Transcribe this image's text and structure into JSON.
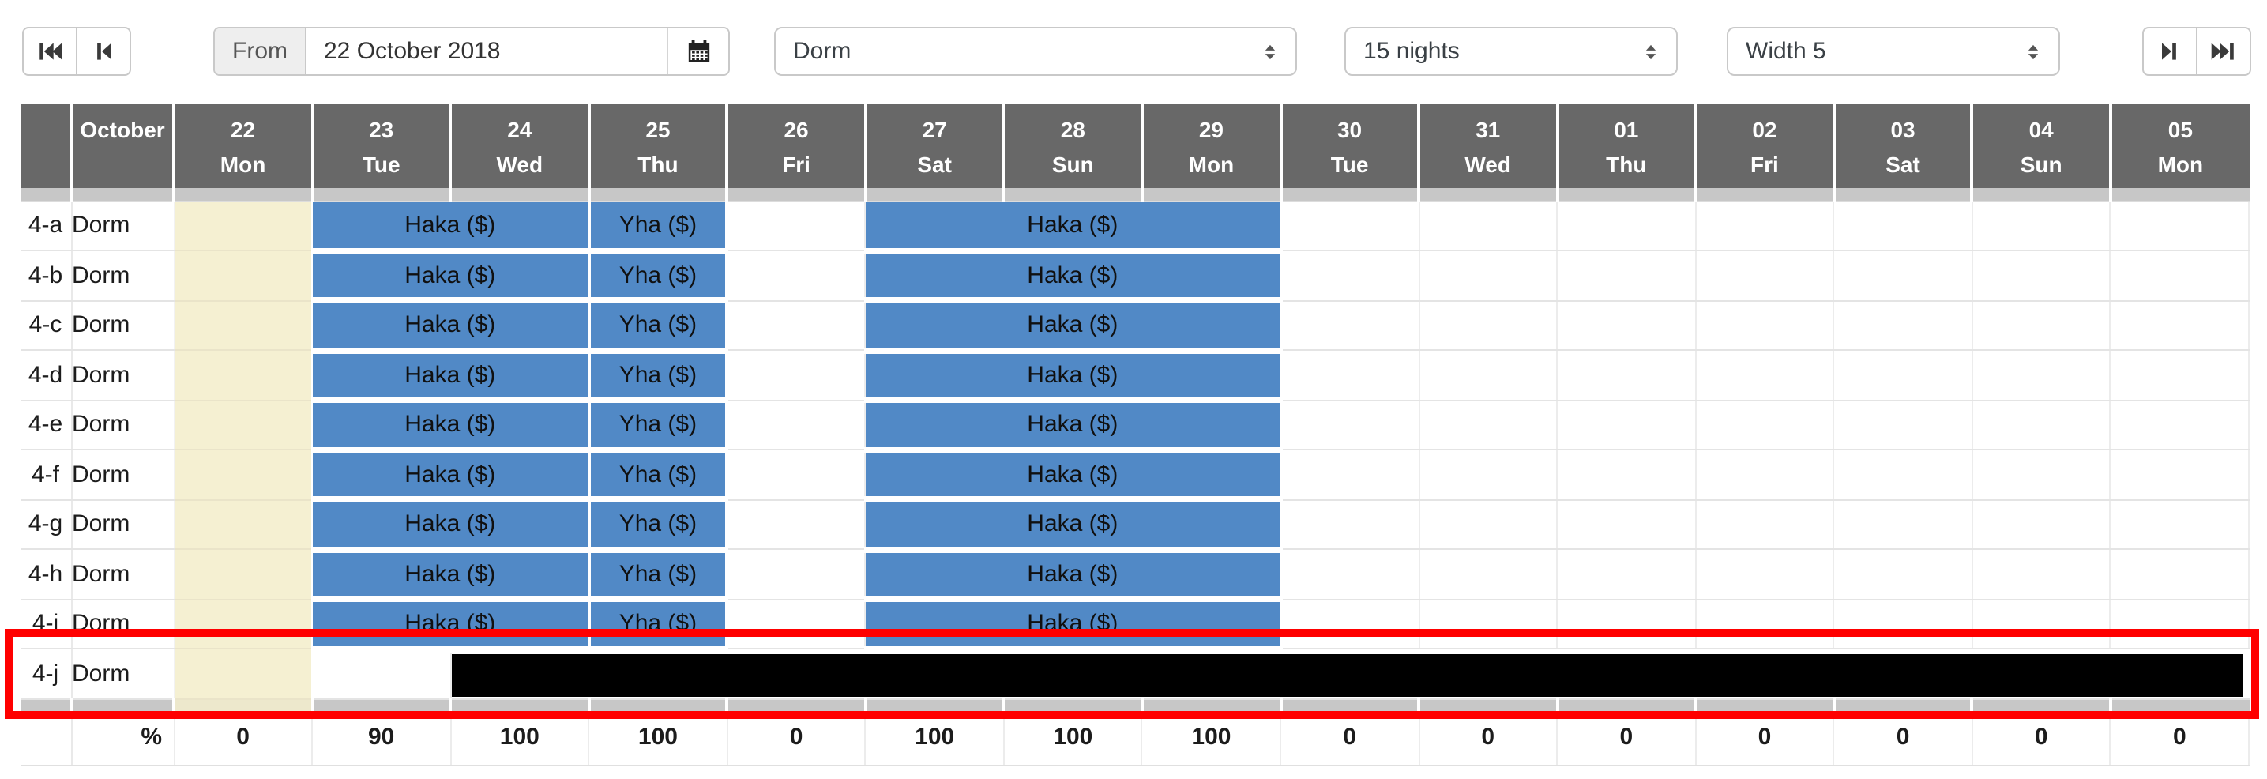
{
  "toolbar": {
    "from_label": "From",
    "date_value": "22 October 2018",
    "room_type": "Dorm",
    "nights": "15 nights",
    "width": "Width 5",
    "icons": {
      "nav_left": [
        "skip-to-start-icon",
        "step-back-icon"
      ],
      "nav_right": [
        "step-forward-icon",
        "skip-to-end-icon"
      ],
      "calendar": "calendar-icon",
      "select_caret": "up-down-caret-icon"
    }
  },
  "table": {
    "month_label": "October",
    "today_date": "22",
    "days": [
      {
        "date": "22",
        "dow": "Mon"
      },
      {
        "date": "23",
        "dow": "Tue"
      },
      {
        "date": "24",
        "dow": "Wed"
      },
      {
        "date": "25",
        "dow": "Thu"
      },
      {
        "date": "26",
        "dow": "Fri"
      },
      {
        "date": "27",
        "dow": "Sat"
      },
      {
        "date": "28",
        "dow": "Sun"
      },
      {
        "date": "29",
        "dow": "Mon"
      },
      {
        "date": "30",
        "dow": "Tue"
      },
      {
        "date": "31",
        "dow": "Wed"
      },
      {
        "date": "01",
        "dow": "Thu"
      },
      {
        "date": "02",
        "dow": "Fri"
      },
      {
        "date": "03",
        "dow": "Sat"
      },
      {
        "date": "04",
        "dow": "Sun"
      },
      {
        "date": "05",
        "dow": "Mon"
      }
    ],
    "rows": [
      {
        "label": "4-a",
        "room": "Dorm",
        "cells": [
          {
            "type": "today_free"
          },
          {
            "type": "booked",
            "span": 2,
            "label": "Haka ($)"
          },
          {
            "type": "booked",
            "span": 1,
            "label": "Yha ($)"
          },
          {
            "type": "free"
          },
          {
            "type": "booked",
            "span": 3,
            "label": "Haka ($)"
          },
          {
            "type": "free"
          },
          {
            "type": "free"
          },
          {
            "type": "free"
          },
          {
            "type": "free"
          },
          {
            "type": "free"
          },
          {
            "type": "free"
          },
          {
            "type": "free"
          }
        ]
      },
      {
        "label": "4-b",
        "room": "Dorm",
        "cells": [
          {
            "type": "today_free"
          },
          {
            "type": "booked",
            "span": 2,
            "label": "Haka ($)"
          },
          {
            "type": "booked",
            "span": 1,
            "label": "Yha ($)"
          },
          {
            "type": "free"
          },
          {
            "type": "booked",
            "span": 3,
            "label": "Haka ($)"
          },
          {
            "type": "free"
          },
          {
            "type": "free"
          },
          {
            "type": "free"
          },
          {
            "type": "free"
          },
          {
            "type": "free"
          },
          {
            "type": "free"
          },
          {
            "type": "free"
          }
        ]
      },
      {
        "label": "4-c",
        "room": "Dorm",
        "cells": [
          {
            "type": "today_free"
          },
          {
            "type": "booked",
            "span": 2,
            "label": "Haka ($)"
          },
          {
            "type": "booked",
            "span": 1,
            "label": "Yha ($)"
          },
          {
            "type": "free"
          },
          {
            "type": "booked",
            "span": 3,
            "label": "Haka ($)"
          },
          {
            "type": "free"
          },
          {
            "type": "free"
          },
          {
            "type": "free"
          },
          {
            "type": "free"
          },
          {
            "type": "free"
          },
          {
            "type": "free"
          },
          {
            "type": "free"
          }
        ]
      },
      {
        "label": "4-d",
        "room": "Dorm",
        "cells": [
          {
            "type": "today_free"
          },
          {
            "type": "booked",
            "span": 2,
            "label": "Haka ($)"
          },
          {
            "type": "booked",
            "span": 1,
            "label": "Yha ($)"
          },
          {
            "type": "free"
          },
          {
            "type": "booked",
            "span": 3,
            "label": "Haka ($)"
          },
          {
            "type": "free"
          },
          {
            "type": "free"
          },
          {
            "type": "free"
          },
          {
            "type": "free"
          },
          {
            "type": "free"
          },
          {
            "type": "free"
          },
          {
            "type": "free"
          }
        ]
      },
      {
        "label": "4-e",
        "room": "Dorm",
        "cells": [
          {
            "type": "today_free"
          },
          {
            "type": "booked",
            "span": 2,
            "label": "Haka ($)"
          },
          {
            "type": "booked",
            "span": 1,
            "label": "Yha ($)"
          },
          {
            "type": "free"
          },
          {
            "type": "booked",
            "span": 3,
            "label": "Haka ($)"
          },
          {
            "type": "free"
          },
          {
            "type": "free"
          },
          {
            "type": "free"
          },
          {
            "type": "free"
          },
          {
            "type": "free"
          },
          {
            "type": "free"
          },
          {
            "type": "free"
          }
        ]
      },
      {
        "label": "4-f",
        "room": "Dorm",
        "cells": [
          {
            "type": "today_free"
          },
          {
            "type": "booked",
            "span": 2,
            "label": "Haka ($)"
          },
          {
            "type": "booked",
            "span": 1,
            "label": "Yha ($)"
          },
          {
            "type": "free"
          },
          {
            "type": "booked",
            "span": 3,
            "label": "Haka ($)"
          },
          {
            "type": "free"
          },
          {
            "type": "free"
          },
          {
            "type": "free"
          },
          {
            "type": "free"
          },
          {
            "type": "free"
          },
          {
            "type": "free"
          },
          {
            "type": "free"
          }
        ]
      },
      {
        "label": "4-g",
        "room": "Dorm",
        "cells": [
          {
            "type": "today_free"
          },
          {
            "type": "booked",
            "span": 2,
            "label": "Haka ($)"
          },
          {
            "type": "booked",
            "span": 1,
            "label": "Yha ($)"
          },
          {
            "type": "free"
          },
          {
            "type": "booked",
            "span": 3,
            "label": "Haka ($)"
          },
          {
            "type": "free"
          },
          {
            "type": "free"
          },
          {
            "type": "free"
          },
          {
            "type": "free"
          },
          {
            "type": "free"
          },
          {
            "type": "free"
          },
          {
            "type": "free"
          }
        ]
      },
      {
        "label": "4-h",
        "room": "Dorm",
        "cells": [
          {
            "type": "today_free"
          },
          {
            "type": "booked",
            "span": 2,
            "label": "Haka ($)"
          },
          {
            "type": "booked",
            "span": 1,
            "label": "Yha ($)"
          },
          {
            "type": "free"
          },
          {
            "type": "booked",
            "span": 3,
            "label": "Haka ($)"
          },
          {
            "type": "free"
          },
          {
            "type": "free"
          },
          {
            "type": "free"
          },
          {
            "type": "free"
          },
          {
            "type": "free"
          },
          {
            "type": "free"
          },
          {
            "type": "free"
          }
        ]
      },
      {
        "label": "4-i",
        "room": "Dorm",
        "cells": [
          {
            "type": "today_free"
          },
          {
            "type": "booked",
            "span": 2,
            "label": "Haka ($)"
          },
          {
            "type": "booked",
            "span": 1,
            "label": "Yha ($)"
          },
          {
            "type": "free"
          },
          {
            "type": "booked",
            "span": 3,
            "label": "Haka ($)"
          },
          {
            "type": "free"
          },
          {
            "type": "free"
          },
          {
            "type": "free"
          },
          {
            "type": "free"
          },
          {
            "type": "free"
          },
          {
            "type": "free"
          },
          {
            "type": "free"
          }
        ]
      },
      {
        "label": "4-j",
        "room": "Dorm",
        "highlighted": true,
        "cells": [
          {
            "type": "today_free"
          },
          {
            "type": "free"
          },
          {
            "type": "blackout",
            "span": 13
          }
        ]
      }
    ],
    "occupancy": {
      "label": "%",
      "values": [
        "0",
        "90",
        "100",
        "100",
        "0",
        "100",
        "100",
        "100",
        "0",
        "0",
        "0",
        "0",
        "0",
        "0",
        "0"
      ]
    }
  },
  "colors": {
    "booked_blue": "#5189c6",
    "today_beige": "#f5f0d2",
    "header_gray": "#686868",
    "highlight_red": "#ff0000",
    "blackout_black": "#000000"
  }
}
